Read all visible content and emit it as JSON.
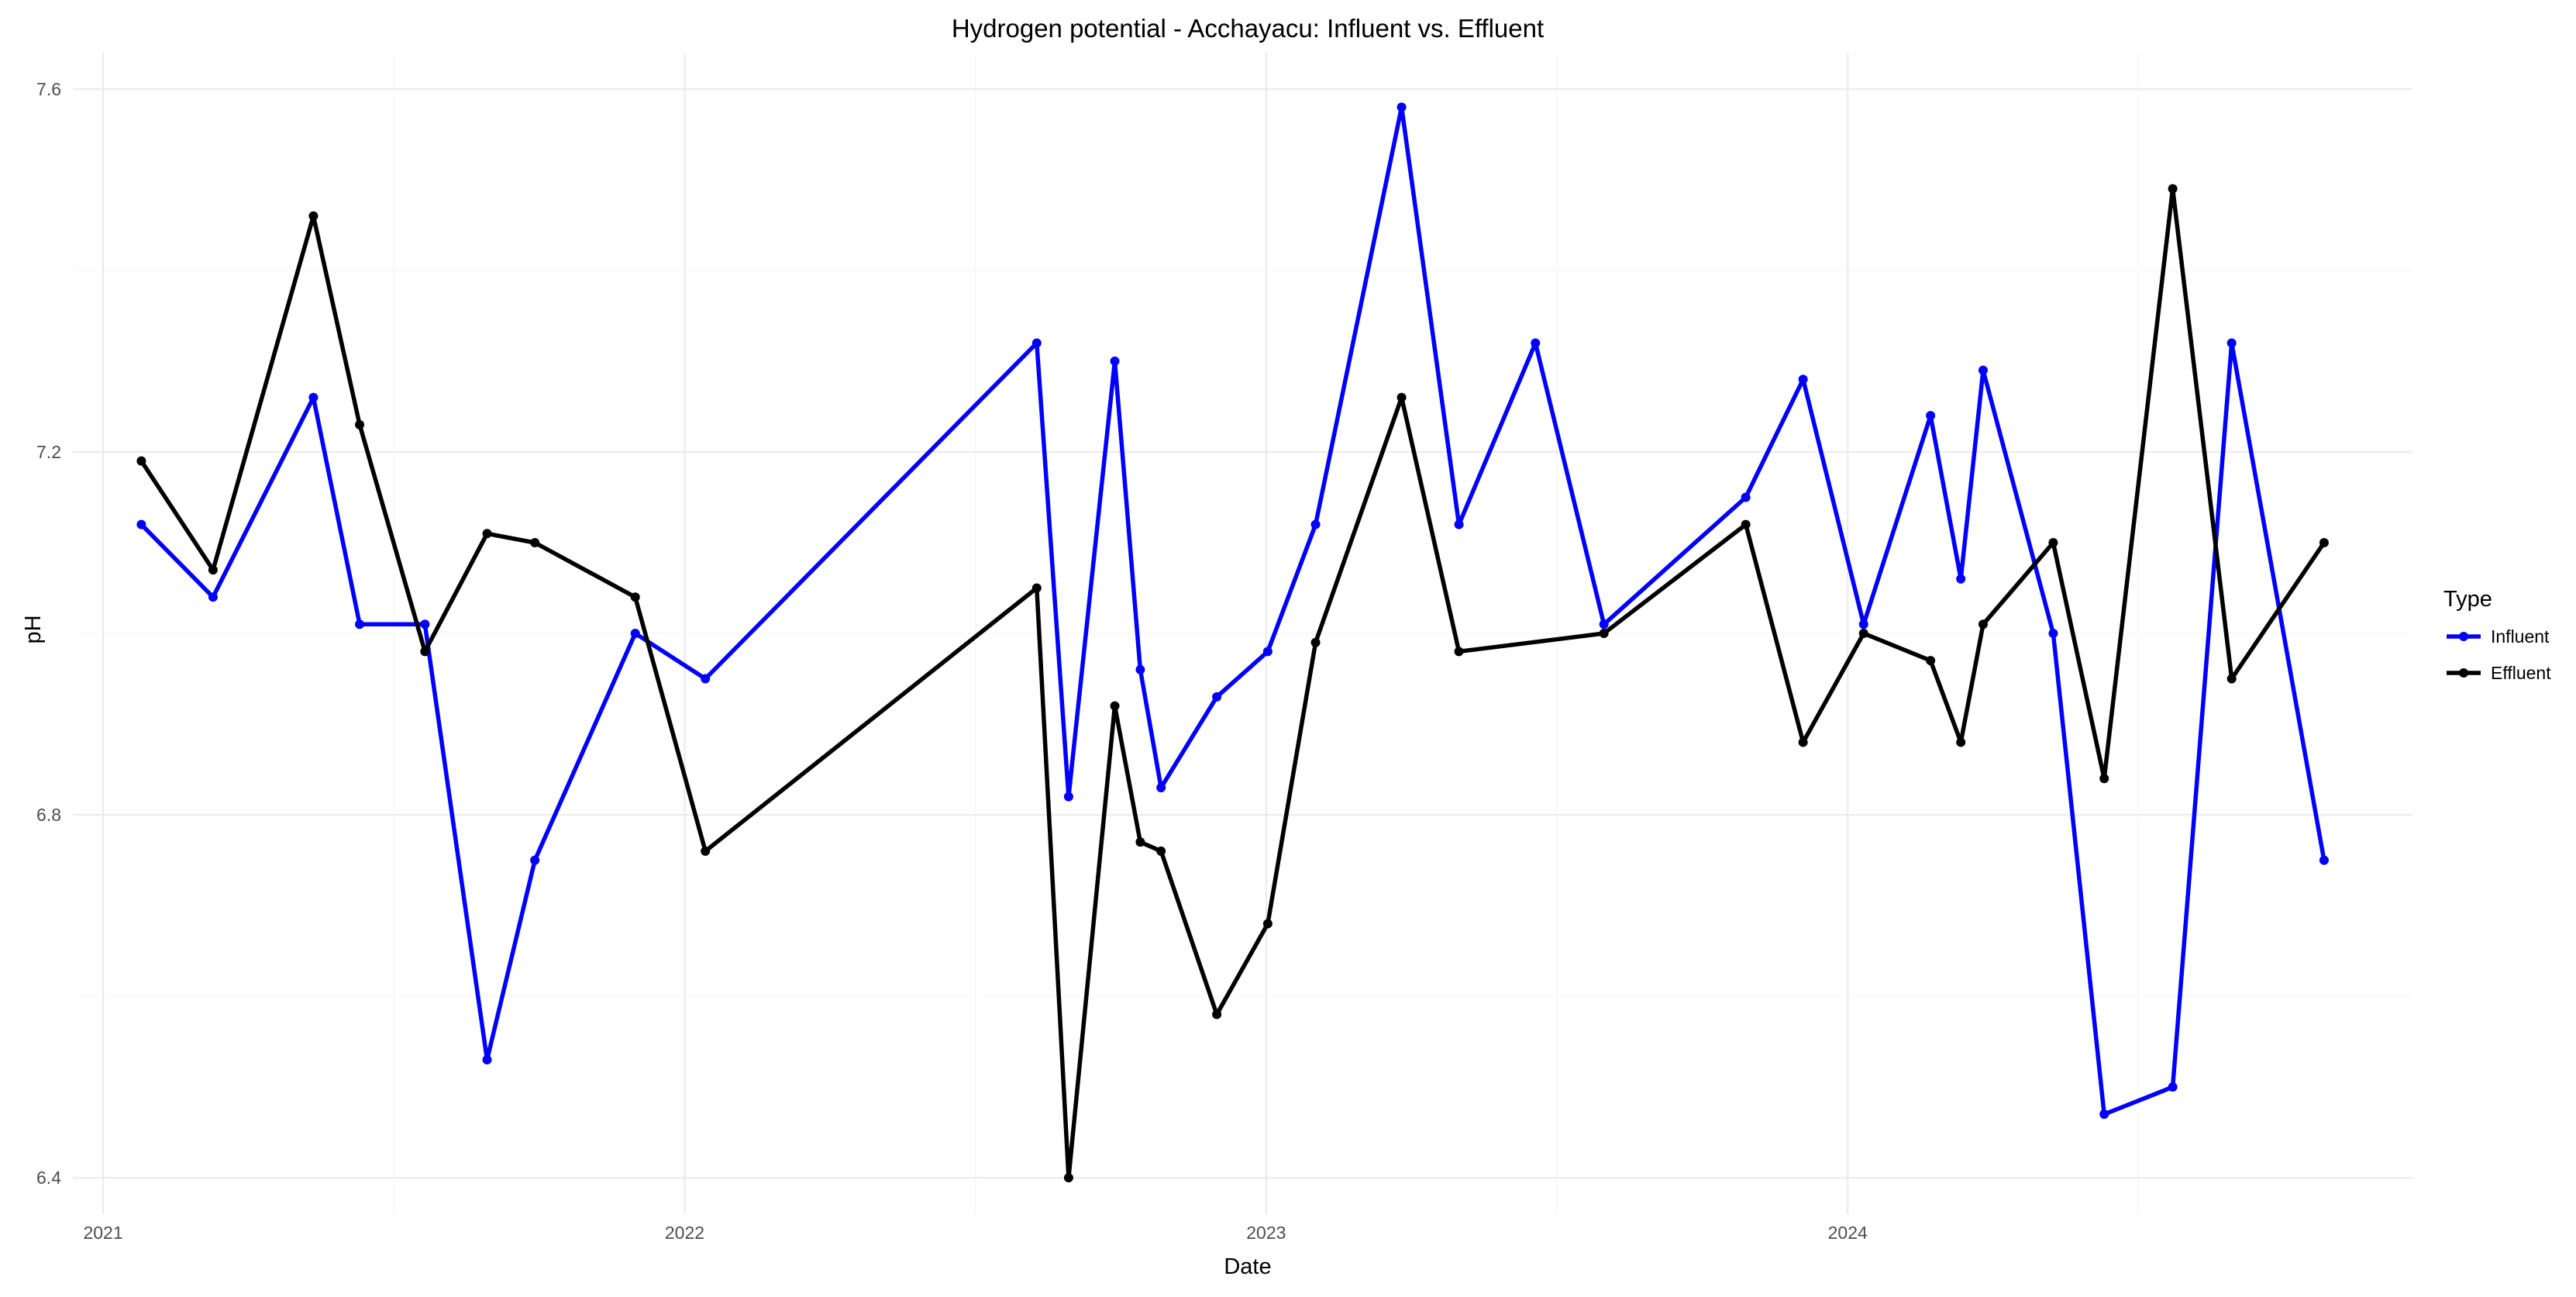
{
  "chart_data": {
    "type": "line",
    "title": "Hydrogen potential - Acchayacu: Influent vs. Effluent",
    "xlabel": "Date",
    "ylabel": "pH",
    "x_axis_type": "date",
    "xlim": [
      "2020-12-13",
      "2024-12-20"
    ],
    "ylim": [
      6.36,
      7.64
    ],
    "x_ticks": [
      "2021-01-01",
      "2022-01-01",
      "2023-01-01",
      "2024-01-01"
    ],
    "x_tick_labels": [
      "2021",
      "2022",
      "2023",
      "2024"
    ],
    "y_ticks": [
      6.4,
      6.8,
      7.2,
      7.6
    ],
    "y_tick_labels": [
      "6.4",
      "6.8",
      "7.2",
      "7.6"
    ],
    "grid": true,
    "legend": {
      "title": "Type",
      "position": "right"
    },
    "series": [
      {
        "name": "Influent",
        "color": "#0000ff",
        "points": [
          {
            "x": "2021-01-25",
            "y": 7.12
          },
          {
            "x": "2021-03-11",
            "y": 7.04
          },
          {
            "x": "2021-05-13",
            "y": 7.26
          },
          {
            "x": "2021-06-11",
            "y": 7.01
          },
          {
            "x": "2021-07-22",
            "y": 7.01
          },
          {
            "x": "2021-08-30",
            "y": 6.53
          },
          {
            "x": "2021-09-29",
            "y": 6.75
          },
          {
            "x": "2021-12-01",
            "y": 7.0
          },
          {
            "x": "2022-01-14",
            "y": 6.95
          },
          {
            "x": "2022-08-10",
            "y": 7.32
          },
          {
            "x": "2022-08-30",
            "y": 6.82
          },
          {
            "x": "2022-09-28",
            "y": 7.3
          },
          {
            "x": "2022-10-14",
            "y": 6.96
          },
          {
            "x": "2022-10-27",
            "y": 6.83
          },
          {
            "x": "2022-12-01",
            "y": 6.93
          },
          {
            "x": "2023-01-02",
            "y": 6.98
          },
          {
            "x": "2023-02-01",
            "y": 7.12
          },
          {
            "x": "2023-03-27",
            "y": 7.58
          },
          {
            "x": "2023-05-02",
            "y": 7.12
          },
          {
            "x": "2023-06-19",
            "y": 7.32
          },
          {
            "x": "2023-08-01",
            "y": 7.01
          },
          {
            "x": "2023-10-29",
            "y": 7.15
          },
          {
            "x": "2023-12-04",
            "y": 7.28
          },
          {
            "x": "2024-01-11",
            "y": 7.01
          },
          {
            "x": "2024-02-22",
            "y": 7.24
          },
          {
            "x": "2024-03-12",
            "y": 7.06
          },
          {
            "x": "2024-03-26",
            "y": 7.29
          },
          {
            "x": "2024-05-09",
            "y": 7.0
          },
          {
            "x": "2024-06-10",
            "y": 6.47
          },
          {
            "x": "2024-07-23",
            "y": 6.5
          },
          {
            "x": "2024-08-29",
            "y": 7.32
          },
          {
            "x": "2024-10-26",
            "y": 6.75
          }
        ]
      },
      {
        "name": "Effluent",
        "color": "#000000",
        "points": [
          {
            "x": "2021-01-25",
            "y": 7.19
          },
          {
            "x": "2021-03-11",
            "y": 7.07
          },
          {
            "x": "2021-05-13",
            "y": 7.46
          },
          {
            "x": "2021-06-11",
            "y": 7.23
          },
          {
            "x": "2021-07-22",
            "y": 6.98
          },
          {
            "x": "2021-08-30",
            "y": 7.11
          },
          {
            "x": "2021-09-29",
            "y": 7.1
          },
          {
            "x": "2021-12-01",
            "y": 7.04
          },
          {
            "x": "2022-01-14",
            "y": 6.76
          },
          {
            "x": "2022-08-10",
            "y": 7.05
          },
          {
            "x": "2022-08-30",
            "y": 6.4
          },
          {
            "x": "2022-09-28",
            "y": 6.92
          },
          {
            "x": "2022-10-14",
            "y": 6.77
          },
          {
            "x": "2022-10-27",
            "y": 6.76
          },
          {
            "x": "2022-12-01",
            "y": 6.58
          },
          {
            "x": "2023-01-02",
            "y": 6.68
          },
          {
            "x": "2023-02-01",
            "y": 6.99
          },
          {
            "x": "2023-03-27",
            "y": 7.26
          },
          {
            "x": "2023-05-02",
            "y": 6.98
          },
          {
            "x": "2023-08-01",
            "y": 7.0
          },
          {
            "x": "2023-10-29",
            "y": 7.12
          },
          {
            "x": "2023-12-04",
            "y": 6.88
          },
          {
            "x": "2024-01-11",
            "y": 7.0
          },
          {
            "x": "2024-02-22",
            "y": 6.97
          },
          {
            "x": "2024-03-12",
            "y": 6.88
          },
          {
            "x": "2024-03-26",
            "y": 7.01
          },
          {
            "x": "2024-05-09",
            "y": 7.1
          },
          {
            "x": "2024-06-10",
            "y": 6.84
          },
          {
            "x": "2024-07-23",
            "y": 7.49
          },
          {
            "x": "2024-08-29",
            "y": 6.95
          },
          {
            "x": "2024-10-26",
            "y": 7.1
          }
        ]
      }
    ]
  }
}
